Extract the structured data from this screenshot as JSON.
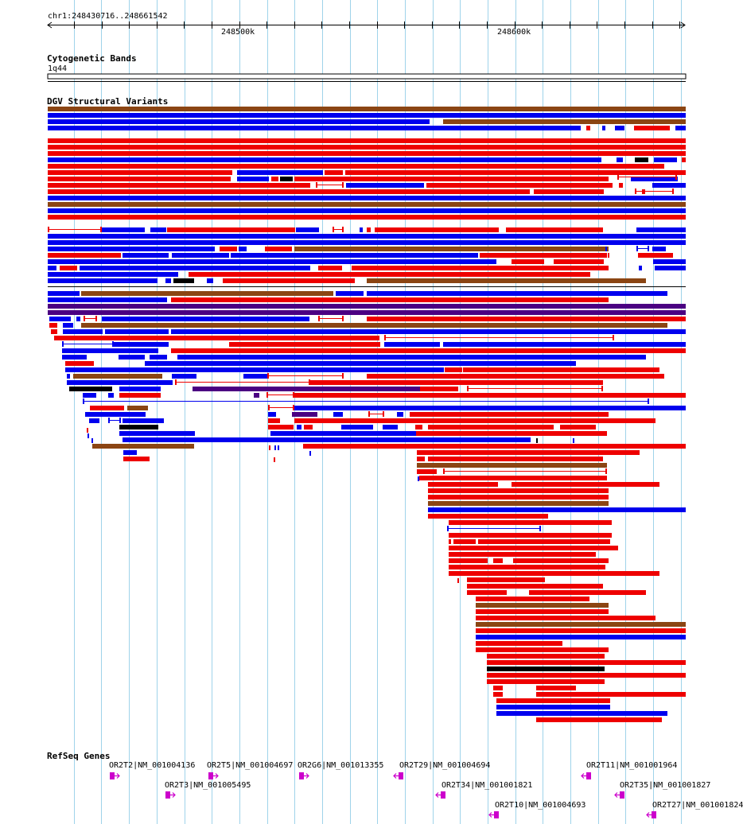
{
  "ruler": {
    "location": "chr1:248430716..248661542",
    "ticks": [
      "248500k",
      "248600k"
    ]
  },
  "cyto": {
    "title": "Cytogenetic Bands",
    "band": "1q44"
  },
  "dgv": {
    "title": "DGV Structural Variants"
  },
  "refseq": {
    "title": "RefSeq Genes",
    "genes": [
      {
        "label": "OR2T2|NM_001004136"
      },
      {
        "label": "OR2T5|NM_001004697"
      },
      {
        "label": "OR2G6|NM_001013355"
      },
      {
        "label": "OR2T29|NM_001004694"
      },
      {
        "label": "OR2T11|NM_001001964"
      },
      {
        "label": "OR2T3|NM_001005495"
      },
      {
        "label": "OR2T34|NM_001001821"
      },
      {
        "label": "OR2T35|NM_001001827"
      },
      {
        "label": "OR2T10|NM_001004693"
      },
      {
        "label": "OR2T27|NM_001001824"
      }
    ]
  },
  "colors": {
    "gain": "#ee0000",
    "loss": "#0000ee",
    "both": "#8b4513",
    "inversion": "#4b0082",
    "complex": "#000000",
    "gene": "#cc00cc",
    "grid": "#9fd3ea"
  }
}
